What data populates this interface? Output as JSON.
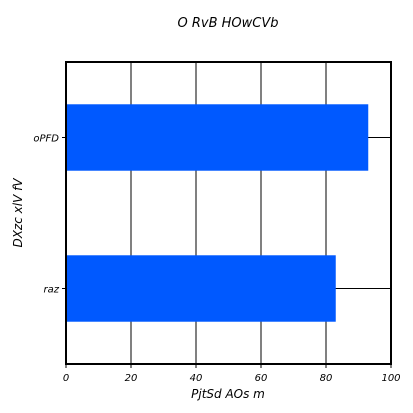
{
  "chart_data": {
    "type": "bar",
    "orientation": "horizontal",
    "title": "O RvB HOwCVb",
    "xlabel": "PjtSd AOs m",
    "ylabel": "DXzc  xlV  fV",
    "categories": [
      "raz",
      "oPFD"
    ],
    "values": [
      83,
      93
    ],
    "xlim": [
      0,
      100
    ],
    "xticks": [
      0,
      20,
      40,
      60,
      80,
      100
    ],
    "grid": true,
    "bar_color": "#0059ff"
  }
}
